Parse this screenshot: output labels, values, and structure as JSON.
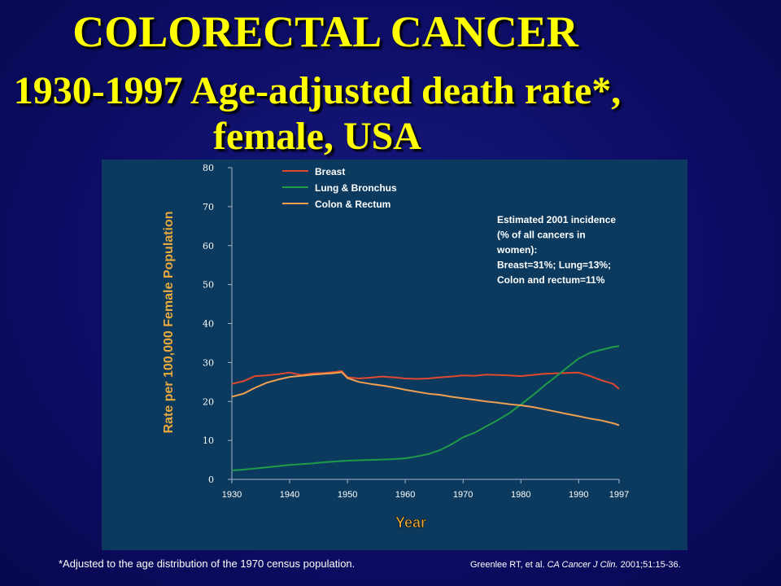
{
  "title_line1": "COLORECTAL CANCER",
  "title_line2": "1930-1997 Age-adjusted death rate*,",
  "title_line3": "female, USA",
  "footnote": "*Adjusted to the age distribution of the 1970 census population.",
  "citation": {
    "authors": "Greenlee RT, et al.",
    "journal": "CA Cancer J Clin.",
    "details": "2001;51:15-36."
  },
  "colors": {
    "title": "#ffff00",
    "panel": "#0b3a5e",
    "axis_label": "#e8a93c",
    "breast": "#e0492f",
    "lung": "#1f9b4a",
    "colon": "#f0a050"
  },
  "chart_data": {
    "type": "line",
    "title": "",
    "xlabel": "Year",
    "ylabel": "Rate per 100,000 Female Population",
    "xlim": [
      1930,
      1997
    ],
    "ylim": [
      0,
      80
    ],
    "x_ticks": [
      1930,
      1940,
      1950,
      1960,
      1970,
      1980,
      1990,
      1997
    ],
    "y_ticks": [
      0,
      10,
      20,
      30,
      40,
      50,
      60,
      70,
      80
    ],
    "grid": false,
    "legend_position": "top-left",
    "annotation": [
      "Estimated 2001 incidence",
      "(% of all cancers in",
      "women):",
      "Breast=31%; Lung=13%;",
      "Colon and rectum=11%"
    ],
    "x": [
      1930,
      1932,
      1934,
      1936,
      1938,
      1940,
      1942,
      1944,
      1946,
      1948,
      1949,
      1950,
      1952,
      1954,
      1956,
      1958,
      1960,
      1962,
      1964,
      1966,
      1968,
      1970,
      1972,
      1974,
      1976,
      1978,
      1980,
      1982,
      1984,
      1986,
      1988,
      1990,
      1992,
      1994,
      1996,
      1997
    ],
    "series": [
      {
        "name": "Breast",
        "color": "#e0492f",
        "values": [
          24.5,
          25.2,
          26.5,
          26.7,
          27.0,
          27.4,
          26.8,
          27.2,
          27.3,
          27.6,
          27.8,
          26.2,
          25.9,
          26.1,
          26.4,
          26.2,
          25.9,
          25.8,
          25.9,
          26.2,
          26.4,
          26.7,
          26.6,
          26.9,
          26.8,
          26.7,
          26.5,
          26.8,
          27.1,
          27.2,
          27.3,
          27.4,
          26.5,
          25.4,
          24.5,
          23.2
        ]
      },
      {
        "name": "Lung & Bronchus",
        "color": "#1f9b4a",
        "values": [
          2.3,
          2.5,
          2.8,
          3.1,
          3.4,
          3.7,
          3.9,
          4.1,
          4.4,
          4.6,
          4.7,
          4.8,
          4.9,
          5.0,
          5.1,
          5.2,
          5.4,
          5.9,
          6.5,
          7.5,
          9.0,
          10.8,
          12.0,
          13.6,
          15.2,
          17.0,
          19.2,
          21.5,
          24.0,
          26.3,
          28.7,
          31.0,
          32.5,
          33.3,
          34.0,
          34.2
        ]
      },
      {
        "name": "Colon & Rectum",
        "color": "#f0a050",
        "values": [
          21.2,
          22.0,
          23.5,
          24.8,
          25.6,
          26.3,
          26.6,
          26.9,
          27.1,
          27.3,
          27.5,
          26.0,
          25.0,
          24.5,
          24.1,
          23.6,
          23.0,
          22.5,
          22.0,
          21.7,
          21.2,
          20.8,
          20.4,
          20.0,
          19.7,
          19.3,
          19.0,
          18.6,
          18.0,
          17.4,
          16.8,
          16.2,
          15.6,
          15.1,
          14.4,
          13.9
        ]
      }
    ]
  }
}
